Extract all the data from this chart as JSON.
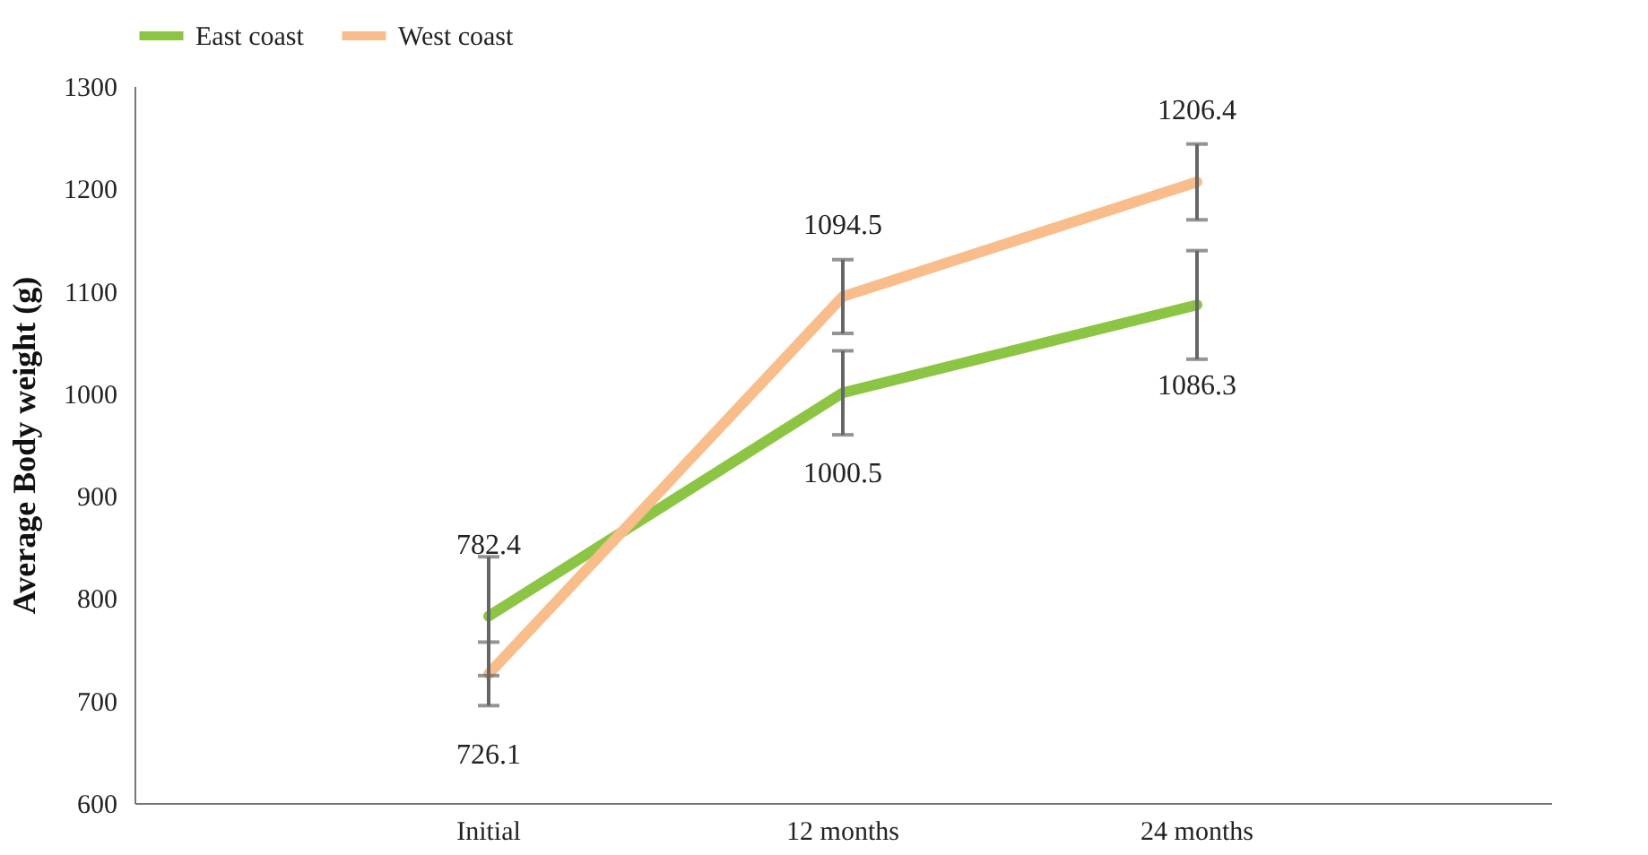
{
  "chart_data": {
    "type": "line",
    "ylabel": "Average Body weight (g)",
    "categories": [
      "Initial",
      "12 months",
      "24 months"
    ],
    "series": [
      {
        "name": "East coast",
        "color": "#8cc443",
        "values": [
          782.4,
          1000.5,
          1086.3
        ],
        "errors": [
          58,
          41,
          53
        ]
      },
      {
        "name": "West coast",
        "color": "#f9bd8b",
        "values": [
          726.1,
          1094.5,
          1206.4
        ],
        "errors": [
          31,
          36,
          37
        ]
      }
    ],
    "ylim": [
      600,
      1300
    ],
    "yticks": [
      600,
      700,
      800,
      900,
      1000,
      1100,
      1200,
      1300
    ],
    "grid": false,
    "legend": "top",
    "data_labels": true,
    "marker": "none",
    "line_style": "solid"
  }
}
